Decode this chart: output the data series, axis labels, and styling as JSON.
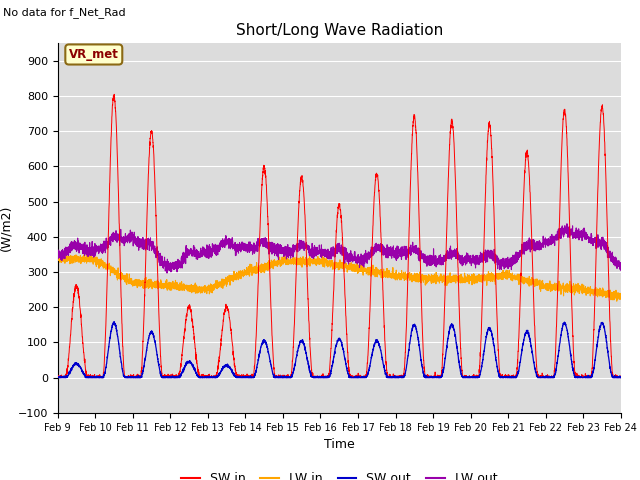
{
  "title": "Short/Long Wave Radiation",
  "xlabel": "Time",
  "ylabel": "(W/m2)",
  "top_left_text": "No data for f_Net_Rad",
  "box_label": "VR_met",
  "ylim": [
    -100,
    950
  ],
  "yticks": [
    -100,
    0,
    100,
    200,
    300,
    400,
    500,
    600,
    700,
    800,
    900
  ],
  "x_tick_labels": [
    "Feb 9",
    "Feb 10",
    "Feb 11",
    "Feb 12",
    "Feb 13",
    "Feb 14",
    "Feb 15",
    "Feb 16",
    "Feb 17",
    "Feb 18",
    "Feb 19",
    "Feb 20",
    "Feb 21",
    "Feb 22",
    "Feb 23",
    "Feb 24"
  ],
  "colors": {
    "SW_in": "#ff0000",
    "LW_in": "#ffa500",
    "SW_out": "#0000cc",
    "LW_out": "#9900aa"
  },
  "legend": [
    {
      "label": "SW in",
      "color": "#ff0000"
    },
    {
      "label": "LW in",
      "color": "#ffa500"
    },
    {
      "label": "SW out",
      "color": "#0000cc"
    },
    {
      "label": "LW out",
      "color": "#9900aa"
    }
  ],
  "plot_bg": "#dcdcdc",
  "fig_bg": "#ffffff",
  "n_days": 15,
  "pts_per_day": 288,
  "day_peaks_SW_in": [
    260,
    800,
    700,
    200,
    200,
    600,
    570,
    490,
    580,
    740,
    730,
    720,
    640,
    760,
    770
  ],
  "day_peaks_SW_out": [
    40,
    155,
    130,
    45,
    35,
    105,
    105,
    110,
    105,
    150,
    150,
    140,
    130,
    155,
    155
  ],
  "LW_in_pattern": [
    340,
    335,
    270,
    260,
    250,
    300,
    330,
    330,
    310,
    290,
    280,
    280,
    290,
    260,
    250,
    230
  ],
  "LW_out_pattern": [
    350,
    360,
    400,
    310,
    360,
    370,
    360,
    355,
    335,
    360,
    330,
    335,
    325,
    385,
    410,
    315
  ]
}
